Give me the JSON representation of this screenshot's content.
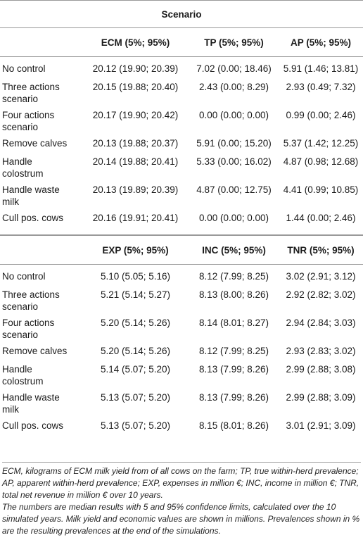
{
  "header": {
    "title": "Scenario"
  },
  "section1": {
    "columns": [
      "ECM (5%; 95%)",
      "TP (5%; 95%)",
      "AP (5%; 95%)"
    ],
    "rows": [
      {
        "label": [
          "No control"
        ],
        "values": [
          "20.12 (19.90; 20.39)",
          "7.02 (0.00; 18.46)",
          "5.91 (1.46; 13.81)"
        ]
      },
      {
        "label": [
          "Three actions",
          "scenario"
        ],
        "values": [
          "20.15 (19.88; 20.40)",
          "2.43 (0.00; 8.29)",
          "2.93 (0.49; 7.32)"
        ]
      },
      {
        "label": [
          "Four actions",
          "scenario"
        ],
        "values": [
          "20.17 (19.90; 20.42)",
          "0.00 (0.00; 0.00)",
          "0.99 (0.00; 2.46)"
        ]
      },
      {
        "label": [
          "Remove calves"
        ],
        "values": [
          "20.13 (19.88; 20.37)",
          "5.91 (0.00; 15.20)",
          "5.37 (1.42; 12.25)"
        ]
      },
      {
        "label": [
          "Handle",
          "colostrum"
        ],
        "values": [
          "20.14 (19.88; 20.41)",
          "5.33 (0.00; 16.02)",
          "4.87 (0.98; 12.68)"
        ]
      },
      {
        "label": [
          "Handle waste",
          "milk"
        ],
        "values": [
          "20.13 (19.89; 20.39)",
          "4.87 (0.00; 12.75)",
          "4.41 (0.99; 10.85)"
        ]
      },
      {
        "label": [
          "Cull pos. cows"
        ],
        "values": [
          "20.16 (19.91; 20.41)",
          "0.00 (0.00; 0.00)",
          "1.44 (0.00; 2.46)"
        ]
      }
    ]
  },
  "section2": {
    "columns": [
      "EXP (5%; 95%)",
      "INC (5%; 95%)",
      "TNR (5%; 95%)"
    ],
    "rows": [
      {
        "label": [
          "No control"
        ],
        "values": [
          "5.10 (5.05; 5.16)",
          "8.12 (7.99; 8.25)",
          "3.02 (2.91; 3.12)"
        ]
      },
      {
        "label": [
          "Three actions",
          "scenario"
        ],
        "values": [
          "5.21 (5.14; 5.27)",
          "8.13 (8.00; 8.26)",
          "2.92 (2.82; 3.02)"
        ]
      },
      {
        "label": [
          "Four actions",
          "scenario"
        ],
        "values": [
          "5.20 (5.14; 5.26)",
          "8.14 (8.01; 8.27)",
          "2.94 (2.84; 3.03)"
        ]
      },
      {
        "label": [
          "Remove calves"
        ],
        "values": [
          "5.20 (5.14; 5.26)",
          "8.12 (7.99; 8.25)",
          "2.93 (2.83; 3.02)"
        ]
      },
      {
        "label": [
          "Handle",
          "colostrum"
        ],
        "values": [
          "5.14 (5.07; 5.20)",
          "8.13 (7.99; 8.26)",
          "2.99 (2.88; 3.08)"
        ]
      },
      {
        "label": [
          "Handle waste",
          "milk"
        ],
        "values": [
          "5.13 (5.07; 5.20)",
          "8.13 (7.99; 8.26)",
          "2.99 (2.88; 3.09)"
        ]
      },
      {
        "label": [
          "Cull pos. cows"
        ],
        "values": [
          "5.13 (5.07; 5.20)",
          "8.15 (8.01; 8.26)",
          "3.01 (2.91; 3.09)"
        ]
      }
    ]
  },
  "footnotes": {
    "abbreviations": "ECM, kilograms of ECM milk yield from of all cows on the farm; TP, true within-herd prevalence; AP, apparent within-herd prevalence; EXP, expenses in million €; INC, income in million €; TNR, total net revenue in million € over 10 years.",
    "note": "The numbers are median results with 5 and 95% confidence limits, calculated over the 10 simulated years. Milk yield and economic values are shown in millions. Prevalences shown in % are the resulting prevalences at the end of the simulations."
  }
}
